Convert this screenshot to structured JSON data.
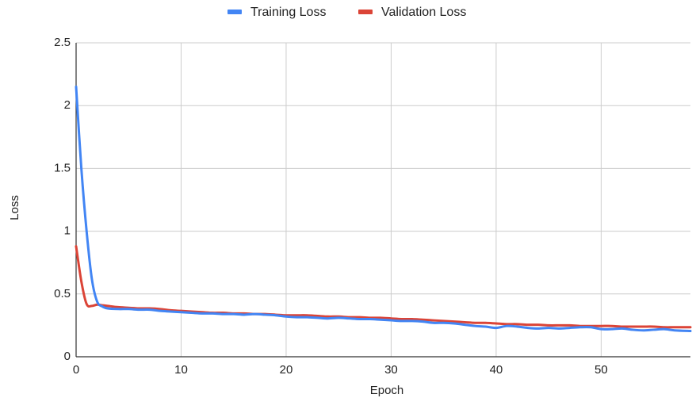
{
  "chart_data": {
    "type": "line",
    "title": "",
    "xlabel": "Epoch",
    "ylabel": "Loss",
    "xlim": [
      0,
      58.5
    ],
    "ylim": [
      0,
      2.5
    ],
    "x_ticks": [
      0,
      10,
      20,
      30,
      40,
      50
    ],
    "x_tick_labels": [
      "0",
      "10",
      "20",
      "30",
      "40",
      "50"
    ],
    "y_ticks": [
      0,
      0.5,
      1,
      1.5,
      2,
      2.5
    ],
    "y_tick_labels": [
      "0",
      "0.5",
      "1",
      "1.5",
      "2",
      "2.5"
    ],
    "grid": true,
    "legend_position": "top",
    "series": [
      {
        "name": "Training Loss",
        "color": "#4285F4",
        "x": [
          0,
          0.5,
          1,
          1.5,
          2,
          2.5,
          3,
          4,
          5,
          6,
          7,
          8,
          9,
          10,
          11,
          12,
          13,
          14,
          15,
          16,
          17,
          18,
          19,
          20,
          21,
          22,
          23,
          24,
          25,
          26,
          27,
          28,
          29,
          30,
          31,
          32,
          33,
          34,
          35,
          36,
          37,
          38,
          39,
          40,
          41,
          42,
          43,
          44,
          45,
          46,
          47,
          48,
          49,
          50,
          51,
          52,
          53,
          54,
          55,
          56,
          57,
          58.5
        ],
        "y": [
          2.15,
          1.5,
          1.0,
          0.62,
          0.44,
          0.4,
          0.385,
          0.38,
          0.38,
          0.375,
          0.375,
          0.365,
          0.36,
          0.355,
          0.35,
          0.345,
          0.345,
          0.34,
          0.34,
          0.335,
          0.34,
          0.335,
          0.33,
          0.32,
          0.315,
          0.315,
          0.31,
          0.305,
          0.31,
          0.305,
          0.3,
          0.3,
          0.295,
          0.29,
          0.285,
          0.285,
          0.28,
          0.27,
          0.27,
          0.265,
          0.255,
          0.245,
          0.24,
          0.23,
          0.245,
          0.24,
          0.23,
          0.225,
          0.23,
          0.225,
          0.23,
          0.235,
          0.235,
          0.22,
          0.22,
          0.225,
          0.215,
          0.21,
          0.215,
          0.22,
          0.21,
          0.205
        ]
      },
      {
        "name": "Validation Loss",
        "color": "#DB4437",
        "x": [
          0,
          0.5,
          1,
          1.5,
          2,
          2.5,
          3,
          4,
          5,
          6,
          7,
          8,
          9,
          10,
          11,
          12,
          13,
          14,
          15,
          16,
          17,
          18,
          19,
          20,
          21,
          22,
          23,
          24,
          25,
          26,
          27,
          28,
          29,
          30,
          31,
          32,
          33,
          34,
          35,
          36,
          37,
          38,
          39,
          40,
          41,
          42,
          43,
          44,
          45,
          46,
          47,
          48,
          49,
          50,
          51,
          52,
          53,
          54,
          55,
          56,
          57,
          58.5
        ],
        "y": [
          0.88,
          0.6,
          0.42,
          0.405,
          0.415,
          0.41,
          0.405,
          0.395,
          0.39,
          0.385,
          0.385,
          0.38,
          0.37,
          0.365,
          0.36,
          0.355,
          0.35,
          0.35,
          0.345,
          0.345,
          0.34,
          0.34,
          0.335,
          0.33,
          0.33,
          0.33,
          0.325,
          0.32,
          0.32,
          0.315,
          0.315,
          0.31,
          0.31,
          0.305,
          0.3,
          0.3,
          0.295,
          0.29,
          0.285,
          0.28,
          0.275,
          0.27,
          0.27,
          0.265,
          0.26,
          0.26,
          0.255,
          0.255,
          0.25,
          0.25,
          0.25,
          0.245,
          0.245,
          0.245,
          0.245,
          0.24,
          0.24,
          0.24,
          0.24,
          0.235,
          0.235,
          0.235
        ]
      }
    ]
  }
}
